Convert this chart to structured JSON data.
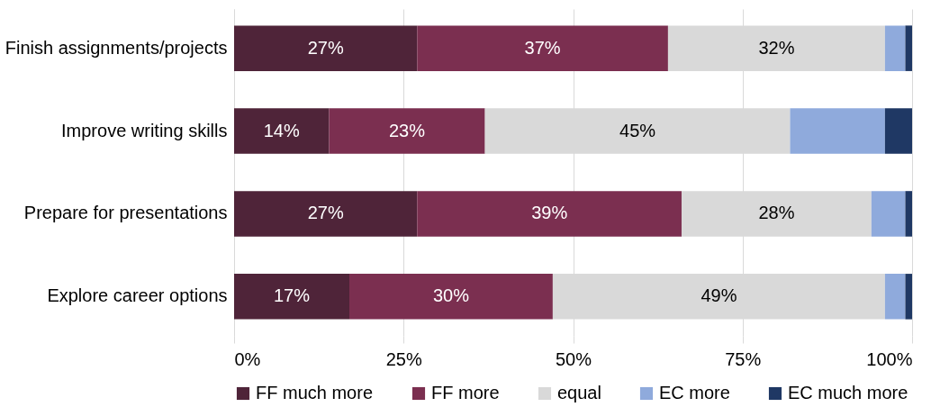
{
  "chart_data": {
    "type": "bar",
    "orientation": "horizontal",
    "stacked": true,
    "categories": [
      "Finish assignments/projects",
      "Improve writing skills",
      "Prepare for presentations",
      "Explore career options"
    ],
    "series": [
      {
        "name": "FF much more",
        "color": "#4f2439",
        "values": [
          27,
          14,
          27,
          17
        ],
        "value_labels": [
          "27%",
          "14%",
          "27%",
          "17%"
        ]
      },
      {
        "name": "FF more",
        "color": "#7b2f50",
        "values": [
          37,
          23,
          39,
          30
        ],
        "value_labels": [
          "37%",
          "23%",
          "39%",
          "30%"
        ]
      },
      {
        "name": "equal",
        "color": "#d9d9d9",
        "values": [
          32,
          45,
          28,
          49
        ],
        "value_labels": [
          "32%",
          "45%",
          "28%",
          "49%"
        ]
      },
      {
        "name": "EC more",
        "color": "#8faadc",
        "values": [
          3,
          14,
          5,
          3
        ],
        "value_labels": [
          null,
          null,
          null,
          null
        ]
      },
      {
        "name": "EC much more",
        "color": "#1f3864",
        "values": [
          1,
          4,
          1,
          1
        ],
        "value_labels": [
          null,
          null,
          null,
          null
        ]
      }
    ],
    "xlim": [
      0,
      100
    ],
    "xticks": [
      {
        "value": 0,
        "label": "0%"
      },
      {
        "value": 25,
        "label": "25%"
      },
      {
        "value": 50,
        "label": "50%"
      },
      {
        "value": 75,
        "label": "75%"
      },
      {
        "value": 100,
        "label": "100%"
      }
    ],
    "grid": "x",
    "legend": "bottom"
  }
}
